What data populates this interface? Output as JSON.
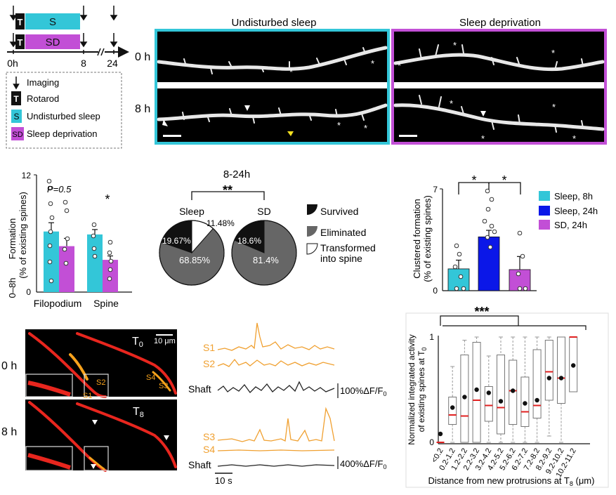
{
  "colors": {
    "sleep": "#33c6d8",
    "sleep24": "#0b17e8",
    "sd": "#c24fd6",
    "trace": "#f0a030",
    "dark": "#333333",
    "gray": "#666666",
    "median": "#e02020"
  },
  "panel_a": {
    "rotarod_letter": "T",
    "s_letter": "S",
    "sd_letter": "SD",
    "time_labels": [
      "0h",
      "8",
      "24"
    ],
    "legend": {
      "imaging": "Imaging",
      "rotarod": "Rotarod",
      "sleep": "Undisturbed sleep",
      "sd": "Sleep deprivation"
    }
  },
  "panel_b": {
    "title_sleep": "Undisturbed sleep",
    "title_sd": "Sleep deprivation",
    "row_0h": "0 h",
    "row_8h": "8 h"
  },
  "chart_data": [
    {
      "type": "bar",
      "title": "",
      "ylabel": "0–8h Formation (% of existing spines)",
      "ylabel_line1": "Formation",
      "ylabel_line2": "(% of existing spines)",
      "ylabel_prefix": "0–8h",
      "ylim": [
        0,
        12
      ],
      "yticks": [
        "0",
        "12"
      ],
      "categories": [
        "Filopodium",
        "Spine"
      ],
      "series": [
        {
          "name": "Sleep",
          "values": [
            6.2,
            5.9
          ],
          "sem": [
            0.9,
            0.5
          ]
        },
        {
          "name": "SD",
          "values": [
            4.7,
            3.3
          ],
          "sem": [
            0.8,
            0.4
          ]
        }
      ],
      "annotations": [
        "P=0.5",
        "*"
      ]
    },
    {
      "type": "pie",
      "title": "8-24h",
      "significance": "**",
      "pies": [
        {
          "name": "Sleep",
          "labels": [
            "Survived",
            "Eliminated",
            "Transformed into spine"
          ],
          "values": [
            19.67,
            68.85,
            11.48
          ],
          "value_labels": [
            "19.67%",
            "68.85%",
            "11.48%"
          ]
        },
        {
          "name": "SD",
          "labels": [
            "Survived",
            "Eliminated"
          ],
          "values": [
            18.6,
            81.4
          ],
          "value_labels": [
            "18.6%",
            "81.4%"
          ]
        }
      ],
      "legend": [
        "Survived",
        "Eliminated",
        "Transformed into spine"
      ],
      "legend_display": [
        "Survived",
        "Eliminated",
        "Transformed",
        "into spine"
      ]
    },
    {
      "type": "bar",
      "title": "",
      "ylabel": "Clustered formation (% of existing spines)",
      "ylabel_line1": "Clustered formation",
      "ylabel_line2": "(% of existing spines)",
      "ylim": [
        0,
        7
      ],
      "yticks": [
        "0",
        "7"
      ],
      "categories": [
        "Sleep, 8h",
        "Sleep, 24h",
        "SD, 24h"
      ],
      "values": [
        1.5,
        3.7,
        1.45
      ],
      "sem": [
        0.6,
        0.45,
        0.9
      ],
      "significance": [
        "*",
        "*"
      ],
      "legend": [
        "Sleep, 8h",
        "Sleep, 24h",
        "SD, 24h"
      ]
    },
    {
      "type": "box",
      "title": "",
      "significance": "***",
      "ylabel_line1": "Normalized integrated activity",
      "ylabel_line2": "of existing spines at T",
      "ylabel_sub": "0",
      "xlabel_main": "Distance from new protrusions at T",
      "xlabel_sub": "8",
      "xlabel_unit": " (μm)",
      "ylim": [
        0,
        1
      ],
      "yticks": [
        "0",
        "1"
      ],
      "categories": [
        "<0.2",
        "0.2-1.2",
        "1.2-2.2",
        "2.2-3.2",
        "3.2-4.2",
        "4.2-5.2",
        "5.2-6.2",
        "6.2-7.2",
        "7.2-8.2",
        "8.2-9.2",
        "9.2-10.2",
        "10.2-11.2"
      ],
      "q1": [
        0.0,
        0.17,
        0.0,
        0.0,
        0.2,
        0.08,
        0.17,
        0.15,
        0.23,
        0.4,
        0.37,
        0.48
      ],
      "median": [
        0.0,
        0.26,
        0.25,
        0.4,
        0.35,
        0.33,
        0.49,
        0.29,
        0.35,
        0.67,
        0.61,
        1.0
      ],
      "q3": [
        0.0,
        0.43,
        0.83,
        0.95,
        0.53,
        0.83,
        0.78,
        0.62,
        0.88,
        0.97,
        1.0,
        1.0
      ],
      "mean": [
        0.08,
        0.33,
        0.43,
        0.5,
        0.47,
        0.39,
        0.49,
        0.37,
        0.4,
        0.61,
        0.61,
        0.73
      ],
      "whisker_low": [
        0.0,
        0.0,
        0.0,
        0.0,
        0.0,
        0.0,
        0.0,
        0.0,
        0.0,
        0.06,
        0.0,
        0.48
      ],
      "whisker_high": [
        0.0,
        0.72,
        0.97,
        1.0,
        0.82,
        1.0,
        1.0,
        1.0,
        1.0,
        1.0,
        1.0,
        1.0
      ]
    }
  ],
  "panel_e": {
    "t0": "T",
    "t0_sub": "0",
    "t8": "T",
    "t8_sub": "8",
    "scale": "10 μm",
    "row_0h": "0 h",
    "row_8h": "8 h",
    "spines": [
      "S1",
      "S2",
      "S3",
      "S4"
    ]
  },
  "panel_f": {
    "traces_top": [
      "S1",
      "S2",
      "Shaft"
    ],
    "traces_bottom": [
      "S3",
      "S4",
      "Shaft"
    ],
    "scale_top": "100%ΔF/F",
    "scale_bottom": "400%ΔF/F",
    "scale_sub": "0",
    "time_scale": "10 s"
  }
}
